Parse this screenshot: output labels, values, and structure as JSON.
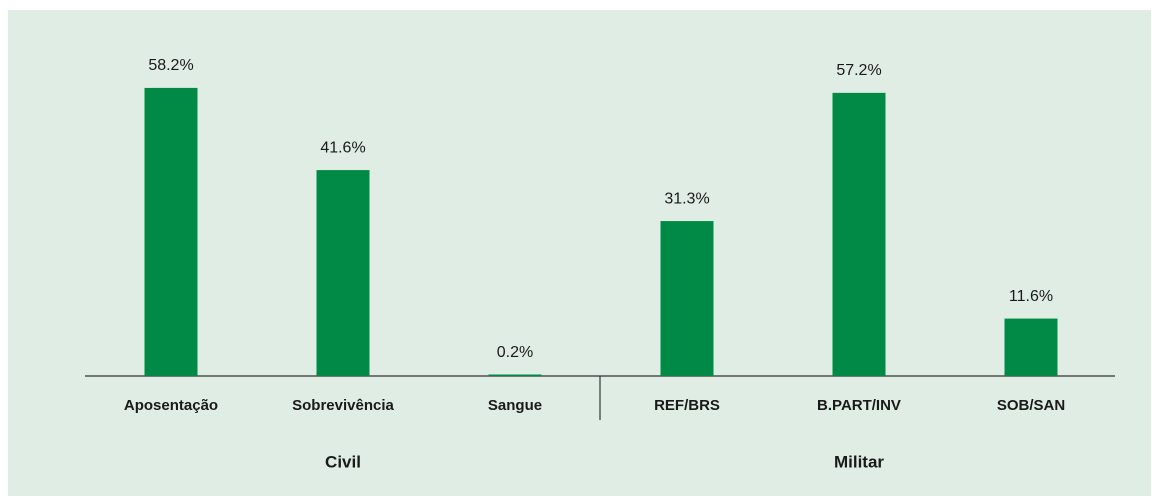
{
  "chart_data": {
    "type": "bar",
    "color": "#008a45",
    "groups": [
      {
        "name": "Civil",
        "categories": [
          "Aposentação",
          "Sobrevivência",
          "Sangue"
        ],
        "values": [
          58.2,
          41.6,
          0.2
        ],
        "value_labels": [
          "58.2%",
          "41.6%",
          "0.2%"
        ]
      },
      {
        "name": "Militar",
        "categories": [
          "REF/BRS",
          "B.PART/INV",
          "SOB/SAN"
        ],
        "values": [
          31.3,
          57.2,
          11.6
        ],
        "value_labels": [
          "31.3%",
          "57.2%",
          "11.6%"
        ]
      }
    ]
  }
}
